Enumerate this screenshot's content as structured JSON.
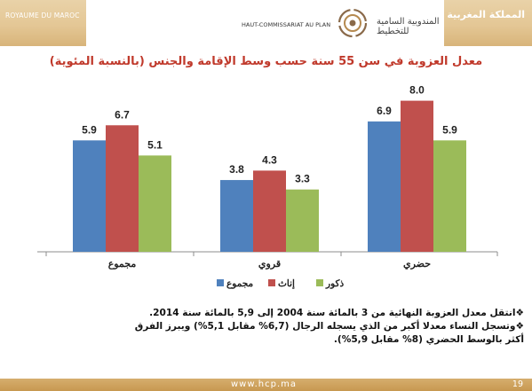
{
  "header": {
    "kingdom_fr": "ROYAUME DU MAROC",
    "kingdom_ar": "المملكة المغربية",
    "org_fr": "HAUT-COMMISSARIAT AU PLAN",
    "org_ar": "المندوبية السامية للتخطيط"
  },
  "colors": {
    "title": "#c0392b",
    "band": "#e4c795",
    "series": [
      "#4f81bd",
      "#c0504d",
      "#9bbb59"
    ]
  },
  "chart_data": {
    "type": "bar",
    "title": "معدل العزوبة في سن 55 سنة حسب وسط الإقامة والجنس (بالنسبة المئوية)",
    "categories": [
      "مجموع",
      "قروي",
      "حضري"
    ],
    "series": [
      {
        "name": "مجموع",
        "values": [
          5.9,
          3.8,
          6.9
        ]
      },
      {
        "name": "إناث",
        "values": [
          6.7,
          4.3,
          8.0
        ]
      },
      {
        "name": "ذكور",
        "values": [
          5.1,
          3.3,
          5.9
        ]
      }
    ],
    "value_labels": [
      [
        "5.9",
        "3.8",
        "6.9"
      ],
      [
        "6.7",
        "4.3",
        "8.0"
      ],
      [
        "5.1",
        "3.3",
        "5.9"
      ]
    ],
    "ylim": [
      0,
      10
    ],
    "grid": false,
    "legend_position": "bottom"
  },
  "notes": [
    "انتقل معدل العزوبة النهائية من 3 بالمائة سنة 2004 إلى 5,9 بالمائة سنة 2014.",
    "وتسجل النساء معدلا أكبر من الذي يسجله الرجال (6,7% مقابل 5,1%) ويبرز الفرق أكثر بالوسط الحضري (8% مقابل 5,9%)."
  ],
  "footer": {
    "url": "www.hcp.ma",
    "page": "19"
  }
}
